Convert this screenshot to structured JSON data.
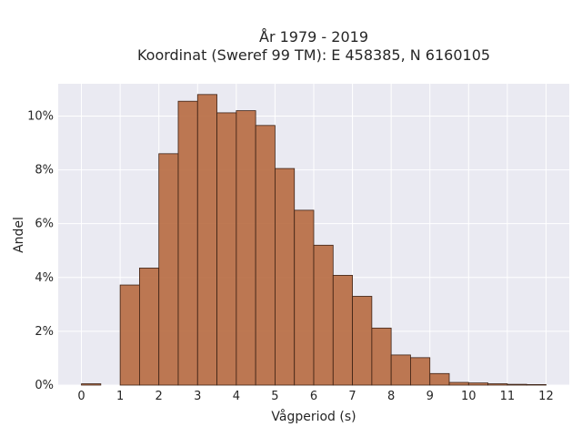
{
  "chart_data": {
    "type": "bar",
    "title_line1": "År 1979 - 2019",
    "title_line2": "Koordinat (Sweref 99 TM): E 458385, N 6160105",
    "xlabel": "Vågperiod (s)",
    "ylabel": "Andel",
    "xlim": [
      -0.6,
      12.6
    ],
    "ylim": [
      0,
      11.2
    ],
    "x_ticks": [
      0,
      1,
      2,
      3,
      4,
      5,
      6,
      7,
      8,
      9,
      10,
      11,
      12
    ],
    "x_tick_labels": [
      "0",
      "1",
      "2",
      "3",
      "4",
      "5",
      "6",
      "7",
      "8",
      "9",
      "10",
      "11",
      "12"
    ],
    "y_ticks": [
      0,
      2,
      4,
      6,
      8,
      10
    ],
    "y_tick_labels": [
      "0%",
      "2%",
      "4%",
      "6%",
      "8%",
      "10%"
    ],
    "grid": true,
    "bin_width": 0.5,
    "bin_starts": [
      0,
      1,
      1.5,
      2,
      2.5,
      3,
      3.5,
      4,
      4.5,
      5,
      5.5,
      6,
      6.5,
      7,
      7.5,
      8,
      8.5,
      9,
      9.5,
      10,
      10.5,
      11,
      11.5
    ],
    "values": [
      0.05,
      3.72,
      4.35,
      8.6,
      10.55,
      10.8,
      10.12,
      10.2,
      9.65,
      8.05,
      6.5,
      5.2,
      4.08,
      3.3,
      2.12,
      1.12,
      1.02,
      0.43,
      0.1,
      0.08,
      0.05,
      0.03,
      0.02
    ],
    "colors": {
      "bar_fill": "#b5663b",
      "bar_edge": "#3d2215",
      "plot_bg": "#eaeaf2",
      "grid": "#ffffff"
    }
  }
}
